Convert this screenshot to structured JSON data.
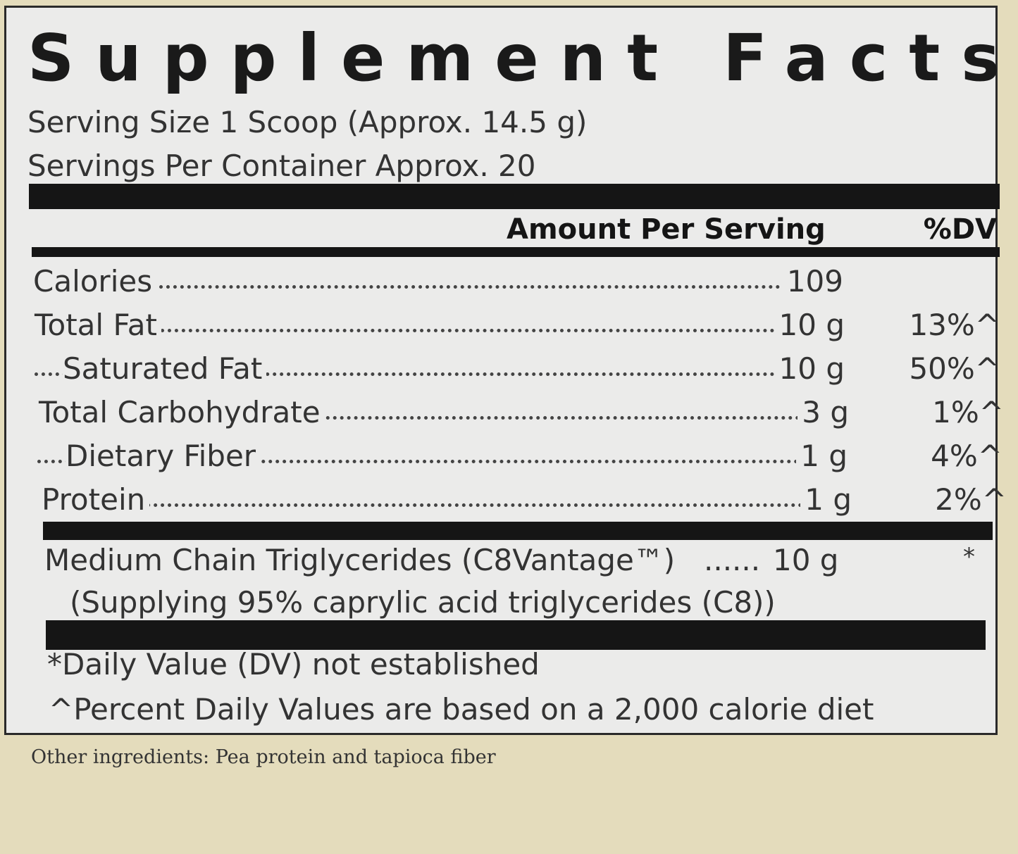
{
  "title": "Supplement Facts",
  "serving_size": "Serving Size 1 Scoop (Approx. 14.5 g)",
  "servings_per_container": "Servings Per Container Approx. 20",
  "header": {
    "amount": "Amount Per Serving",
    "dv": "%DV"
  },
  "rows": [
    {
      "label": "Calories",
      "amount": "109",
      "dv": ""
    },
    {
      "label": "Total Fat",
      "amount": "10 g",
      "dv": "13%^"
    },
    {
      "label": "Saturated Fat",
      "amount": "10 g",
      "dv": "50%^"
    },
    {
      "label": "Total Carbohydrate",
      "amount": "3 g",
      "dv": "1%^"
    },
    {
      "label": "Dietary Fiber",
      "amount": "1 g",
      "dv": "4%^"
    },
    {
      "label": "Protein",
      "amount": "1 g",
      "dv": "2%^"
    }
  ],
  "mct": {
    "label": "Medium Chain Triglycerides (C8Vantage™)",
    "leader": "......",
    "amount": "10 g",
    "dv": "*",
    "sub": "(Supplying 95% caprylic acid triglycerides (C8))"
  },
  "footnotes": [
    "*Daily Value (DV) not established",
    "^Percent Daily Values are based on a 2,000 calorie diet"
  ],
  "other_ingredients": "Other ingredients: Pea protein and tapioca fiber"
}
